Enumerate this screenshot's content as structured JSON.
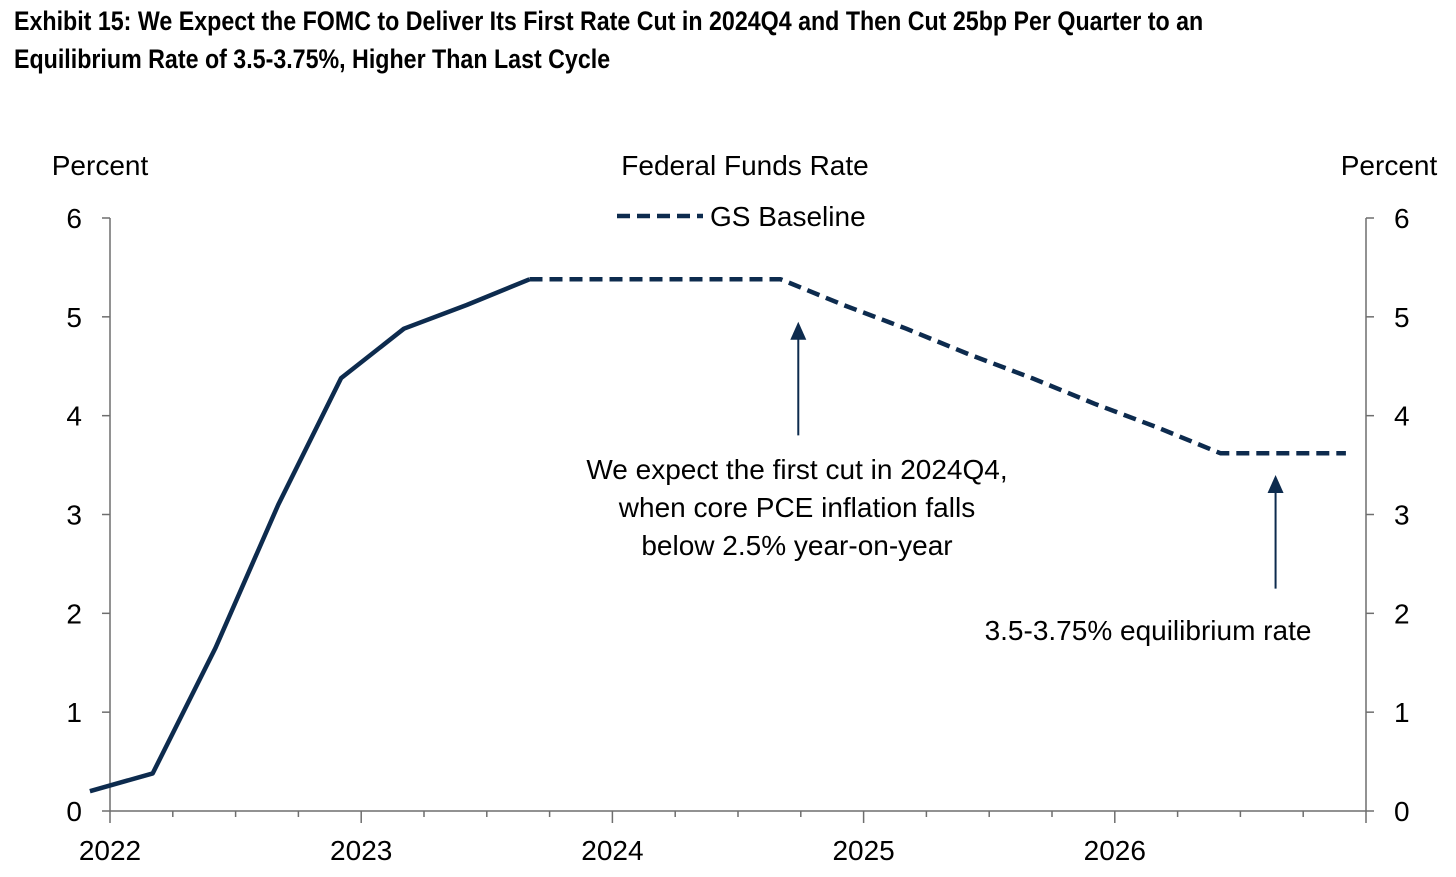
{
  "exhibit": {
    "title_line1": "Exhibit 15: We Expect the FOMC to Deliver Its First Rate Cut in 2024Q4 and Then Cut 25bp Per Quarter to an",
    "title_line2": "Equilibrium Rate of 3.5-3.75%, Higher Than Last Cycle"
  },
  "chart_data": {
    "type": "line",
    "title": "Federal Funds Rate",
    "ylabel_left": "Percent",
    "ylabel_right": "Percent",
    "x_ticks": [
      "2022",
      "2023",
      "2024",
      "2025",
      "2026"
    ],
    "xlim": [
      2022.0,
      2027.0
    ],
    "ylim": [
      0,
      6
    ],
    "y_ticks": [
      0,
      1,
      2,
      3,
      4,
      5,
      6
    ],
    "grid": false,
    "legend_position": "top-center",
    "series": [
      {
        "name": "",
        "style": "solid",
        "color": "#0d2b4e",
        "x": [
          2021.92,
          2022.17,
          2022.42,
          2022.67,
          2022.92,
          2023.17,
          2023.42,
          2023.67
        ],
        "y": [
          0.2,
          0.38,
          1.65,
          3.1,
          4.38,
          4.88,
          5.12,
          5.38
        ]
      },
      {
        "name": "GS Baseline",
        "style": "dashed",
        "color": "#0d2b4e",
        "x": [
          2023.67,
          2023.92,
          2024.17,
          2024.42,
          2024.67,
          2024.92,
          2025.17,
          2025.42,
          2025.67,
          2025.92,
          2026.17,
          2026.42,
          2026.67,
          2026.92
        ],
        "y": [
          5.38,
          5.38,
          5.38,
          5.38,
          5.38,
          5.12,
          4.88,
          4.62,
          4.38,
          4.12,
          3.88,
          3.62,
          3.62,
          3.62
        ]
      }
    ],
    "annotations": [
      {
        "name": "first-cut",
        "lines": [
          "We expect the first cut in 2024Q4,",
          "when core PCE inflation falls",
          "below 2.5% year-on-year"
        ],
        "arrow_x": 2024.74,
        "arrow_from_y": 3.8,
        "arrow_to_y": 4.95
      },
      {
        "name": "equilibrium",
        "lines": [
          "3.5-3.75% equilibrium rate"
        ],
        "arrow_x": 2026.64,
        "arrow_from_y": 2.25,
        "arrow_to_y": 3.4
      }
    ]
  }
}
